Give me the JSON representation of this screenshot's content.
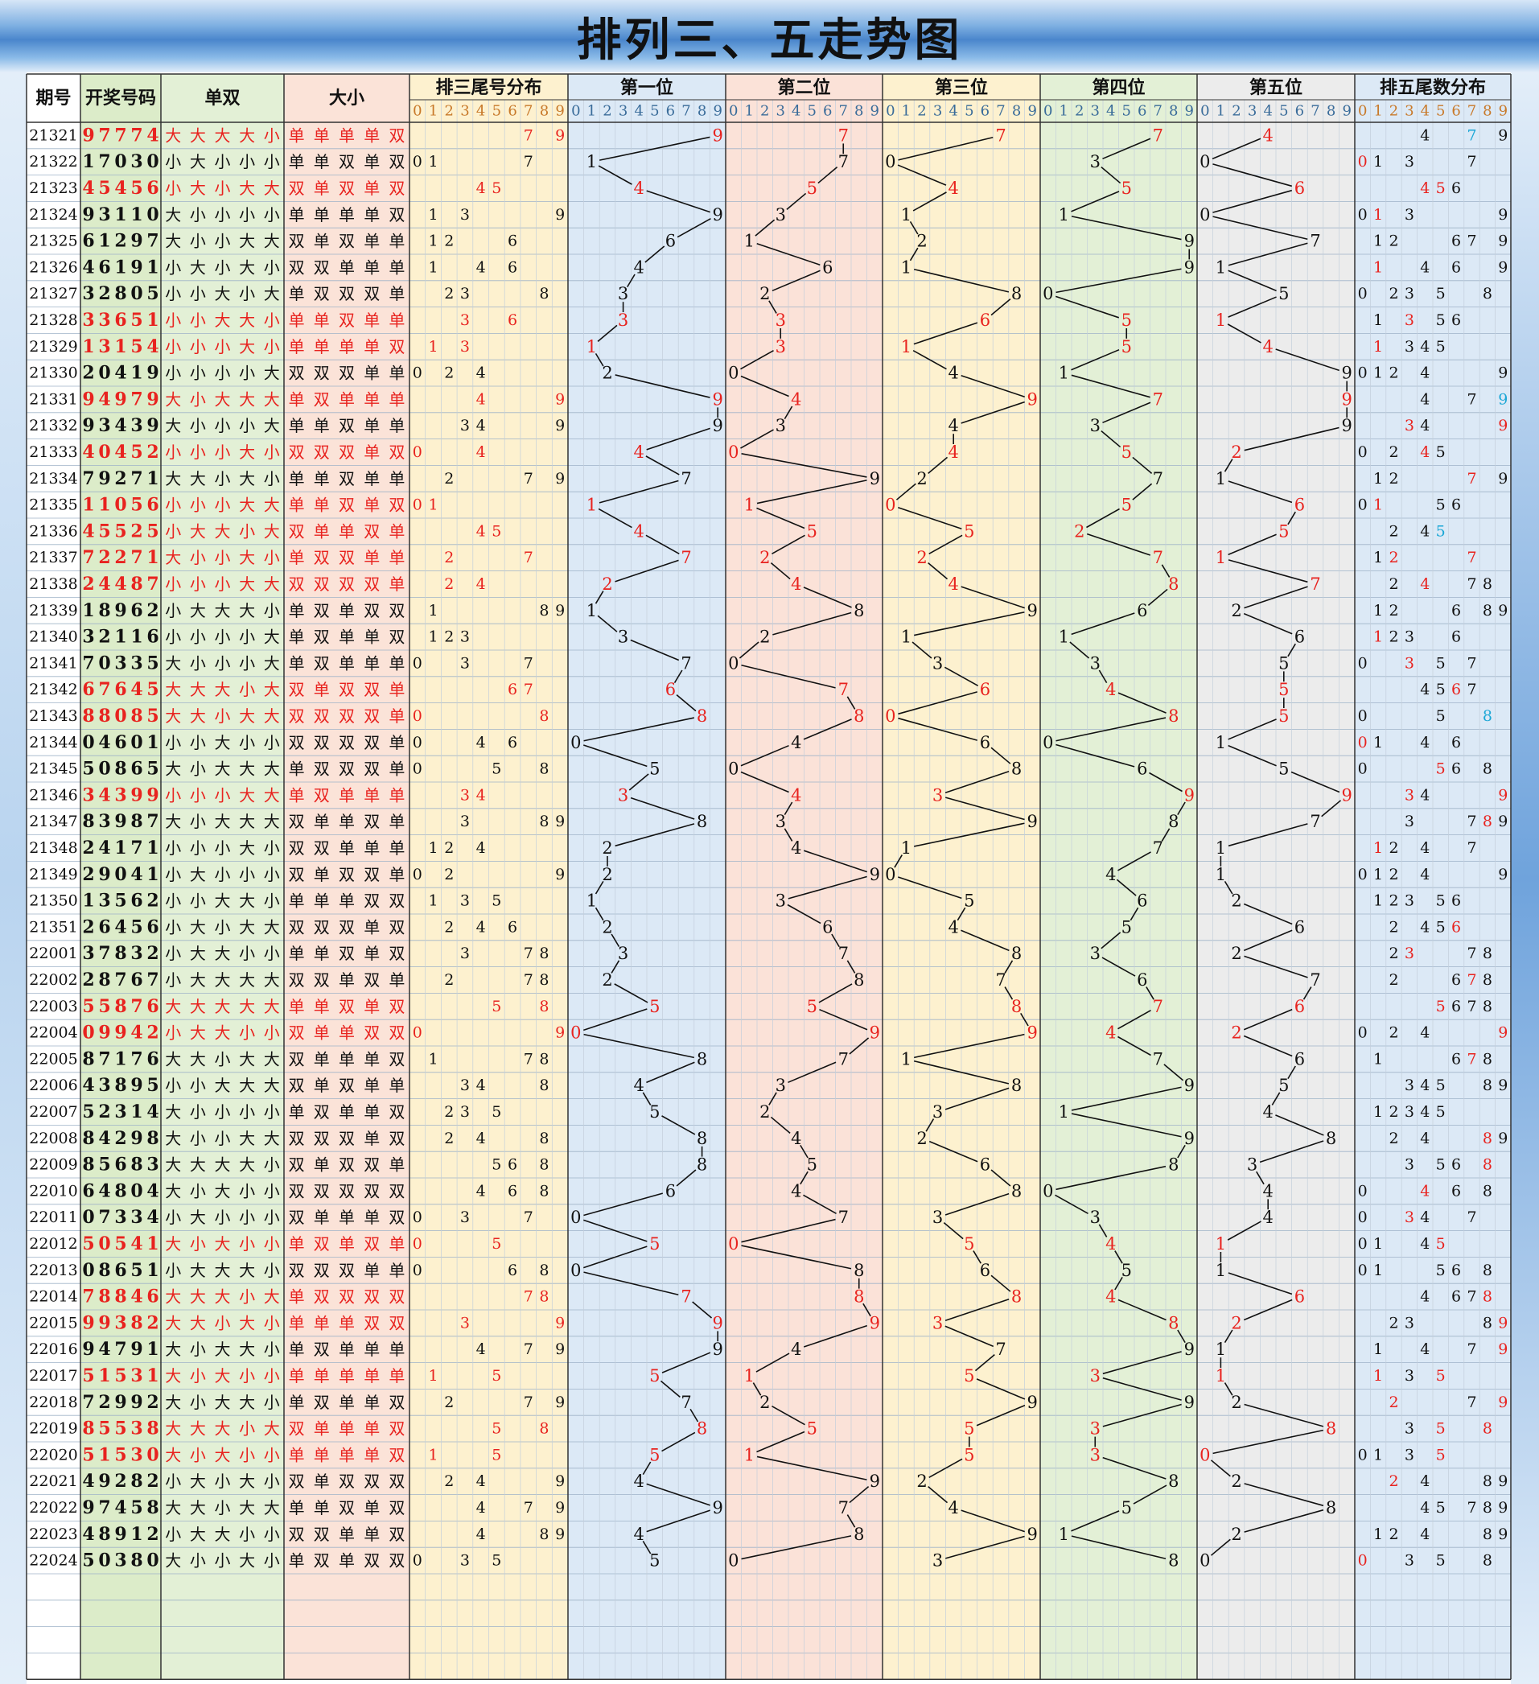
{
  "title": "排列三、五走势图",
  "headers": {
    "issue": "期号",
    "numbers": "开奖号码",
    "parity": "单双",
    "size": "大小",
    "dist3": "排三尾号分布",
    "pos": [
      "第一位",
      "第二位",
      "第三位",
      "第四位",
      "第五位"
    ],
    "dist5": "排五尾数分布",
    "digits": [
      "0",
      "1",
      "2",
      "3",
      "4",
      "5",
      "6",
      "7",
      "8",
      "9"
    ]
  },
  "colors": {
    "red": "#e8231f",
    "cyan": "#1ca7d6",
    "black": "#111111",
    "bg_issue": "#ffffff",
    "bg_numbers": "#dcecc9",
    "bg_parity": "#e3f0d6",
    "bg_size": "#fbe3d8",
    "bg_dist3": "#fdf1cf",
    "bg_pos": [
      "#dce9f6",
      "#fbe2d8",
      "#fdf1cf",
      "#e3f0d6",
      "#ececec"
    ],
    "bg_dist5": "#dce9f6"
  },
  "chart_data": {
    "type": "table",
    "rows": [
      {
        "issue": "21321",
        "nums": "97774"
      },
      {
        "issue": "21322",
        "nums": "17030"
      },
      {
        "issue": "21323",
        "nums": "45456"
      },
      {
        "issue": "21324",
        "nums": "93110"
      },
      {
        "issue": "21325",
        "nums": "61297"
      },
      {
        "issue": "21326",
        "nums": "46191"
      },
      {
        "issue": "21327",
        "nums": "32805"
      },
      {
        "issue": "21328",
        "nums": "33651"
      },
      {
        "issue": "21329",
        "nums": "13154"
      },
      {
        "issue": "21330",
        "nums": "20419"
      },
      {
        "issue": "21331",
        "nums": "94979"
      },
      {
        "issue": "21332",
        "nums": "93439"
      },
      {
        "issue": "21333",
        "nums": "40452"
      },
      {
        "issue": "21334",
        "nums": "79271"
      },
      {
        "issue": "21335",
        "nums": "11056"
      },
      {
        "issue": "21336",
        "nums": "45525"
      },
      {
        "issue": "21337",
        "nums": "72271"
      },
      {
        "issue": "21338",
        "nums": "24487"
      },
      {
        "issue": "21339",
        "nums": "18962"
      },
      {
        "issue": "21340",
        "nums": "32116"
      },
      {
        "issue": "21341",
        "nums": "70335"
      },
      {
        "issue": "21342",
        "nums": "67645"
      },
      {
        "issue": "21343",
        "nums": "88085"
      },
      {
        "issue": "21344",
        "nums": "04601"
      },
      {
        "issue": "21345",
        "nums": "50865"
      },
      {
        "issue": "21346",
        "nums": "34399"
      },
      {
        "issue": "21347",
        "nums": "83987"
      },
      {
        "issue": "21348",
        "nums": "24171"
      },
      {
        "issue": "21349",
        "nums": "29041"
      },
      {
        "issue": "21350",
        "nums": "13562"
      },
      {
        "issue": "21351",
        "nums": "26456"
      },
      {
        "issue": "22001",
        "nums": "37832"
      },
      {
        "issue": "22002",
        "nums": "28767"
      },
      {
        "issue": "22003",
        "nums": "55876"
      },
      {
        "issue": "22004",
        "nums": "09942"
      },
      {
        "issue": "22005",
        "nums": "87176"
      },
      {
        "issue": "22006",
        "nums": "43895"
      },
      {
        "issue": "22007",
        "nums": "52314"
      },
      {
        "issue": "22008",
        "nums": "84298"
      },
      {
        "issue": "22009",
        "nums": "85683"
      },
      {
        "issue": "22010",
        "nums": "64804"
      },
      {
        "issue": "22011",
        "nums": "07334"
      },
      {
        "issue": "22012",
        "nums": "50541"
      },
      {
        "issue": "22013",
        "nums": "08651"
      },
      {
        "issue": "22014",
        "nums": "78846"
      },
      {
        "issue": "22015",
        "nums": "99382"
      },
      {
        "issue": "22016",
        "nums": "94791"
      },
      {
        "issue": "22017",
        "nums": "51531"
      },
      {
        "issue": "22018",
        "nums": "72992"
      },
      {
        "issue": "22019",
        "nums": "85538"
      },
      {
        "issue": "22020",
        "nums": "51530"
      },
      {
        "issue": "22021",
        "nums": "49282"
      },
      {
        "issue": "22022",
        "nums": "97458"
      },
      {
        "issue": "22023",
        "nums": "48912"
      },
      {
        "issue": "22024",
        "nums": "50380"
      }
    ],
    "empty_rows": 4,
    "labels": {
      "big": "大",
      "small": "小",
      "odd": "单",
      "even": "双"
    }
  }
}
